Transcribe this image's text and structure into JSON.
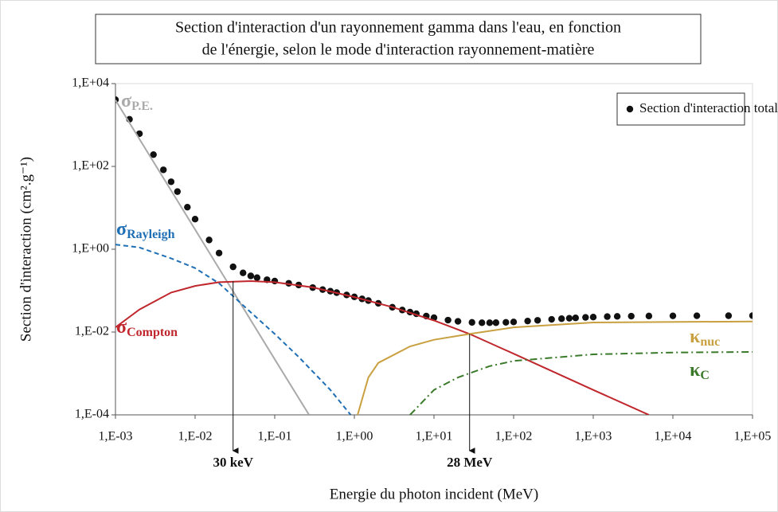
{
  "chart_data": {
    "type": "line",
    "title_lines": [
      "Section d'interaction d'un rayonnement gamma dans l'eau, en fonction",
      "de l'énergie, selon le mode d'interaction rayonnement-matière"
    ],
    "xlabel": "Energie du photon incident (MeV)",
    "ylabel": "Section d'interaction (cm².g⁻¹)",
    "xscale": "log",
    "yscale": "log",
    "xlim": [
      0.001,
      100000
    ],
    "ylim": [
      0.0001,
      10000
    ],
    "xticks": [
      {
        "value": 0.001,
        "label": "1,E-03"
      },
      {
        "value": 0.01,
        "label": "1,E-02"
      },
      {
        "value": 0.1,
        "label": "1,E-01"
      },
      {
        "value": 1,
        "label": "1,E+00"
      },
      {
        "value": 10,
        "label": "1,E+01"
      },
      {
        "value": 100,
        "label": "1,E+02"
      },
      {
        "value": 1000,
        "label": "1,E+03"
      },
      {
        "value": 10000,
        "label": "1,E+04"
      },
      {
        "value": 100000,
        "label": "1,E+05"
      }
    ],
    "yticks": [
      {
        "value": 10000,
        "label": "1,E+04"
      },
      {
        "value": 100,
        "label": "1,E+02"
      },
      {
        "value": 1,
        "label": "1,E+00"
      },
      {
        "value": 0.01,
        "label": "1,E-02"
      },
      {
        "value": 0.0001,
        "label": "1,E-04"
      }
    ],
    "legend_position": "upper right",
    "series": [
      {
        "name": "Section d'interaction totale",
        "style": "dots",
        "color": "#111111",
        "x": [
          0.001,
          0.0015,
          0.002,
          0.003,
          0.004,
          0.005,
          0.006,
          0.008,
          0.01,
          0.015,
          0.02,
          0.03,
          0.04,
          0.05,
          0.06,
          0.08,
          0.1,
          0.15,
          0.2,
          0.3,
          0.4,
          0.5,
          0.6,
          0.8,
          1,
          1.25,
          1.5,
          2,
          3,
          4,
          5,
          6,
          8,
          10,
          15,
          20,
          30,
          40,
          50,
          60,
          80,
          100,
          150,
          200,
          300,
          400,
          500,
          600,
          800,
          1000,
          1500,
          2000,
          3000,
          5000,
          10000,
          20000,
          50000,
          100000
        ],
        "values": [
          4078,
          1376,
          617,
          192.9,
          82.78,
          42.58,
          24.64,
          10.37,
          5.329,
          1.673,
          0.8096,
          0.3756,
          0.2683,
          0.2269,
          0.2059,
          0.1837,
          0.1707,
          0.1505,
          0.137,
          0.1186,
          0.1061,
          0.0969,
          0.08956,
          0.07865,
          0.07072,
          0.06323,
          0.05754,
          0.04942,
          0.03969,
          0.03403,
          0.03031,
          0.0277,
          0.02429,
          0.02219,
          0.01941,
          0.01813,
          0.0171,
          0.01679,
          0.01676,
          0.01683,
          0.01716,
          0.01753,
          0.01845,
          0.0192,
          0.02027,
          0.02101,
          0.02155,
          0.02197,
          0.02258,
          0.023,
          0.0236,
          0.0239,
          0.0242,
          0.0244,
          0.0246,
          0.0247,
          0.0248,
          0.0249
        ]
      },
      {
        "name": "σ",
        "subscript": "P.E.",
        "style": "solid",
        "color": "#aaaaaa",
        "x": [
          0.001,
          0.01,
          0.1,
          0.27
        ],
        "values": [
          4000,
          3,
          0.0022,
          0.0001
        ]
      },
      {
        "name": "σ",
        "subscript": "Rayleigh",
        "style": "dashed",
        "color": "#1f6fb5",
        "x": [
          0.001,
          0.002,
          0.005,
          0.01,
          0.02,
          0.05,
          0.1,
          0.2,
          0.5,
          0.9
        ],
        "values": [
          1.3,
          1.1,
          0.6,
          0.35,
          0.15,
          0.03,
          0.009,
          0.0025,
          0.0004,
          0.0001
        ]
      },
      {
        "name": "σ",
        "subscript": "Compton",
        "style": "solid",
        "color": "#c0272d",
        "x": [
          0.001,
          0.002,
          0.005,
          0.01,
          0.02,
          0.05,
          0.1,
          0.3,
          1,
          3,
          10,
          28,
          100,
          1000,
          5000
        ],
        "values": [
          0.013,
          0.035,
          0.09,
          0.13,
          0.16,
          0.17,
          0.16,
          0.12,
          0.07,
          0.04,
          0.019,
          0.009,
          0.003,
          0.0004,
          0.0001
        ]
      },
      {
        "name": "κ",
        "subscript": "nuc",
        "style": "solid",
        "color": "#c9a040",
        "x": [
          1.1,
          1.5,
          2,
          5,
          10,
          28,
          100,
          1000,
          100000
        ],
        "values": [
          0.0001,
          0.0008,
          0.0018,
          0.0045,
          0.0065,
          0.009,
          0.013,
          0.017,
          0.018
        ]
      },
      {
        "name": "κ",
        "subscript": "C",
        "style": "dashdot",
        "color": "#3a7a2a",
        "x": [
          5,
          10,
          20,
          50,
          100,
          1000,
          10000,
          100000
        ],
        "values": [
          0.0001,
          0.0004,
          0.0008,
          0.0015,
          0.002,
          0.0029,
          0.0032,
          0.0033
        ]
      }
    ],
    "annotations": [
      {
        "text": "30 keV",
        "x": 0.03,
        "y": 0.17
      },
      {
        "text": "28 MeV",
        "x": 28,
        "y": 0.009
      }
    ]
  }
}
